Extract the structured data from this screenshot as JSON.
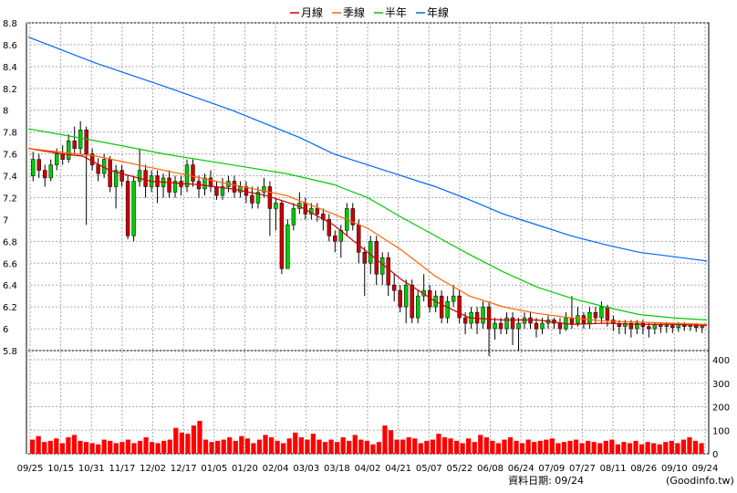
{
  "chart_data": {
    "type": "candlestick",
    "legend": {
      "placement": "top-center",
      "items": [
        {
          "name": "月線",
          "color": "#cc0000"
        },
        {
          "name": "季線",
          "color": "#ff6600"
        },
        {
          "name": "半年",
          "color": "#00cc00"
        },
        {
          "name": "年線",
          "color": "#0066ff"
        }
      ]
    },
    "price_axis": {
      "min": 5.8,
      "max": 8.8,
      "ticks": [
        "8.8",
        "8.6",
        "8.4",
        "8.2",
        "8",
        "7.8",
        "7.6",
        "7.4",
        "7.2",
        "7",
        "6.8",
        "6.6",
        "6.4",
        "6.2",
        "6",
        "5.8"
      ],
      "position": "left"
    },
    "volume_axis": {
      "min": 0,
      "max": 400,
      "ticks": [
        "400",
        "300",
        "200",
        "100",
        "0"
      ],
      "position": "right"
    },
    "x_ticks": [
      "09/25",
      "10/15",
      "10/31",
      "11/17",
      "12/02",
      "12/17",
      "01/05",
      "01/20",
      "02/04",
      "03/03",
      "03/18",
      "04/02",
      "04/21",
      "05/07",
      "05/22",
      "06/08",
      "06/24",
      "07/09",
      "07/27",
      "08/11",
      "08/26",
      "09/10",
      "09/24"
    ],
    "colors": {
      "up": "#00cc00",
      "down": "#cc0000",
      "volume": "#ff0000",
      "grid": "#aaaaaa"
    },
    "grid": true,
    "moving_averages": {
      "month": [
        [
          0,
          7.65
        ],
        [
          0.05,
          7.6
        ],
        [
          0.08,
          7.58
        ],
        [
          0.12,
          7.45
        ],
        [
          0.18,
          7.35
        ],
        [
          0.25,
          7.32
        ],
        [
          0.3,
          7.28
        ],
        [
          0.35,
          7.22
        ],
        [
          0.4,
          7.12
        ],
        [
          0.45,
          6.95
        ],
        [
          0.5,
          6.7
        ],
        [
          0.55,
          6.45
        ],
        [
          0.6,
          6.25
        ],
        [
          0.65,
          6.1
        ],
        [
          0.7,
          6.08
        ],
        [
          0.75,
          6.08
        ],
        [
          0.8,
          6.04
        ],
        [
          0.85,
          6.05
        ],
        [
          0.9,
          6.04
        ],
        [
          0.95,
          6.04
        ],
        [
          1,
          6.03
        ]
      ],
      "quarter": [
        [
          0,
          7.65
        ],
        [
          0.1,
          7.58
        ],
        [
          0.2,
          7.45
        ],
        [
          0.3,
          7.32
        ],
        [
          0.38,
          7.22
        ],
        [
          0.45,
          7.05
        ],
        [
          0.5,
          6.92
        ],
        [
          0.55,
          6.72
        ],
        [
          0.6,
          6.48
        ],
        [
          0.65,
          6.3
        ],
        [
          0.7,
          6.2
        ],
        [
          0.75,
          6.14
        ],
        [
          0.8,
          6.1
        ],
        [
          0.85,
          6.07
        ],
        [
          0.9,
          6.06
        ],
        [
          0.95,
          6.05
        ],
        [
          1,
          6.04
        ]
      ],
      "half": [
        [
          0,
          7.83
        ],
        [
          0.1,
          7.72
        ],
        [
          0.2,
          7.6
        ],
        [
          0.3,
          7.5
        ],
        [
          0.38,
          7.42
        ],
        [
          0.45,
          7.32
        ],
        [
          0.5,
          7.2
        ],
        [
          0.55,
          7.02
        ],
        [
          0.6,
          6.85
        ],
        [
          0.65,
          6.68
        ],
        [
          0.7,
          6.52
        ],
        [
          0.75,
          6.38
        ],
        [
          0.8,
          6.28
        ],
        [
          0.85,
          6.2
        ],
        [
          0.9,
          6.13
        ],
        [
          0.95,
          6.1
        ],
        [
          1,
          6.08
        ]
      ],
      "year": [
        [
          0,
          8.67
        ],
        [
          0.1,
          8.43
        ],
        [
          0.2,
          8.22
        ],
        [
          0.3,
          8.0
        ],
        [
          0.4,
          7.75
        ],
        [
          0.45,
          7.6
        ],
        [
          0.5,
          7.5
        ],
        [
          0.55,
          7.4
        ],
        [
          0.6,
          7.3
        ],
        [
          0.65,
          7.18
        ],
        [
          0.7,
          7.05
        ],
        [
          0.75,
          6.95
        ],
        [
          0.8,
          6.85
        ],
        [
          0.85,
          6.77
        ],
        [
          0.9,
          6.7
        ],
        [
          0.95,
          6.66
        ],
        [
          1,
          6.62
        ]
      ]
    },
    "candles": [
      [
        7.4,
        7.55,
        7.62,
        7.35
      ],
      [
        7.55,
        7.45,
        7.6,
        7.38
      ],
      [
        7.45,
        7.38,
        7.5,
        7.3
      ],
      [
        7.38,
        7.5,
        7.55,
        7.35
      ],
      [
        7.5,
        7.6,
        7.65,
        7.45
      ],
      [
        7.6,
        7.55,
        7.68,
        7.5
      ],
      [
        7.55,
        7.72,
        7.78,
        7.52
      ],
      [
        7.72,
        7.65,
        7.85,
        7.6
      ],
      [
        7.65,
        7.82,
        7.9,
        7.6
      ],
      [
        7.82,
        7.6,
        7.85,
        6.95
      ],
      [
        7.6,
        7.5,
        7.65,
        7.45
      ],
      [
        7.5,
        7.42,
        7.56,
        7.35
      ],
      [
        7.42,
        7.55,
        7.6,
        7.38
      ],
      [
        7.55,
        7.3,
        7.58,
        7.25
      ],
      [
        7.3,
        7.45,
        7.5,
        7.1
      ],
      [
        7.45,
        7.35,
        7.5,
        7.3
      ],
      [
        7.35,
        6.85,
        7.4,
        6.82
      ],
      [
        6.85,
        7.35,
        7.4,
        6.8
      ],
      [
        7.35,
        7.45,
        7.65,
        7.3
      ],
      [
        7.45,
        7.3,
        7.5,
        7.2
      ],
      [
        7.3,
        7.4,
        7.45,
        7.25
      ],
      [
        7.4,
        7.3,
        7.45,
        7.15
      ],
      [
        7.3,
        7.38,
        7.42,
        7.2
      ],
      [
        7.38,
        7.25,
        7.45,
        7.2
      ],
      [
        7.25,
        7.35,
        7.4,
        7.2
      ],
      [
        7.35,
        7.3,
        7.4,
        7.22
      ],
      [
        7.3,
        7.5,
        7.55,
        7.25
      ],
      [
        7.5,
        7.35,
        7.55,
        7.3
      ],
      [
        7.35,
        7.28,
        7.4,
        7.2
      ],
      [
        7.28,
        7.38,
        7.42,
        7.22
      ],
      [
        7.38,
        7.3,
        7.45,
        7.25
      ],
      [
        7.3,
        7.22,
        7.35,
        7.18
      ],
      [
        7.22,
        7.3,
        7.38,
        7.18
      ],
      [
        7.3,
        7.35,
        7.4,
        7.25
      ],
      [
        7.35,
        7.25,
        7.4,
        7.2
      ],
      [
        7.25,
        7.3,
        7.35,
        7.2
      ],
      [
        7.3,
        7.22,
        7.35,
        7.15
      ],
      [
        7.22,
        7.15,
        7.3,
        7.1
      ],
      [
        7.15,
        7.25,
        7.3,
        7.1
      ],
      [
        7.25,
        7.3,
        7.38,
        7.2
      ],
      [
        7.3,
        7.1,
        7.35,
        6.85
      ],
      [
        7.1,
        7.15,
        7.2,
        6.9
      ],
      [
        7.15,
        6.55,
        7.18,
        6.5
      ],
      [
        6.55,
        6.95,
        7.0,
        6.55
      ],
      [
        6.95,
        7.1,
        7.15,
        6.9
      ],
      [
        7.1,
        7.15,
        7.25,
        7.05
      ],
      [
        7.15,
        7.05,
        7.2,
        7.0
      ],
      [
        7.05,
        7.1,
        7.15,
        7.0
      ],
      [
        7.1,
        7.05,
        7.15,
        6.98
      ],
      [
        7.05,
        7.0,
        7.1,
        6.9
      ],
      [
        7.0,
        6.85,
        7.05,
        6.8
      ],
      [
        6.85,
        6.8,
        6.9,
        6.7
      ],
      [
        6.8,
        6.9,
        6.95,
        6.65
      ],
      [
        6.9,
        7.1,
        7.15,
        6.85
      ],
      [
        7.1,
        6.95,
        7.15,
        6.9
      ],
      [
        6.95,
        6.7,
        7.0,
        6.6
      ],
      [
        6.7,
        6.6,
        6.75,
        6.3
      ],
      [
        6.6,
        6.8,
        6.85,
        6.5
      ],
      [
        6.8,
        6.5,
        6.85,
        6.4
      ],
      [
        6.5,
        6.65,
        6.7,
        6.4
      ],
      [
        6.65,
        6.4,
        6.7,
        6.3
      ],
      [
        6.4,
        6.35,
        6.5,
        6.25
      ],
      [
        6.35,
        6.2,
        6.4,
        6.15
      ],
      [
        6.2,
        6.4,
        6.45,
        6.05
      ],
      [
        6.4,
        6.1,
        6.45,
        6.05
      ],
      [
        6.1,
        6.3,
        6.35,
        6.05
      ],
      [
        6.3,
        6.35,
        6.5,
        6.25
      ],
      [
        6.35,
        6.2,
        6.4,
        6.15
      ],
      [
        6.2,
        6.3,
        6.35,
        6.15
      ],
      [
        6.3,
        6.1,
        6.35,
        6.05
      ],
      [
        6.1,
        6.25,
        6.3,
        6.05
      ],
      [
        6.25,
        6.3,
        6.4,
        6.2
      ],
      [
        6.3,
        6.1,
        6.35,
        6.05
      ],
      [
        6.1,
        6.05,
        6.15,
        5.95
      ],
      [
        6.05,
        6.15,
        6.2,
        6.0
      ],
      [
        6.15,
        6.05,
        6.2,
        5.95
      ],
      [
        6.05,
        6.2,
        6.25,
        6.0
      ],
      [
        6.2,
        6.0,
        6.25,
        5.75
      ],
      [
        6.0,
        6.05,
        6.1,
        5.9
      ],
      [
        6.05,
        6.0,
        6.1,
        5.95
      ],
      [
        6.0,
        6.1,
        6.15,
        5.95
      ],
      [
        6.1,
        6.0,
        6.15,
        5.85
      ],
      [
        6.0,
        6.05,
        6.1,
        5.8
      ],
      [
        6.05,
        6.1,
        6.15,
        6.0
      ],
      [
        6.1,
        6.05,
        6.15,
        6.0
      ],
      [
        6.05,
        6.0,
        6.1,
        5.92
      ],
      [
        6.0,
        6.05,
        6.1,
        5.95
      ],
      [
        6.05,
        6.08,
        6.12,
        6.0
      ],
      [
        6.08,
        6.05,
        6.1,
        6.0
      ],
      [
        6.05,
        6.0,
        6.1,
        5.95
      ],
      [
        6.0,
        6.1,
        6.15,
        5.98
      ],
      [
        6.1,
        6.05,
        6.3,
        6.0
      ],
      [
        6.05,
        6.12,
        6.2,
        6.02
      ],
      [
        6.12,
        6.05,
        6.15,
        6.0
      ],
      [
        6.05,
        6.15,
        6.2,
        6.0
      ],
      [
        6.15,
        6.1,
        6.2,
        6.05
      ],
      [
        6.1,
        6.2,
        6.25,
        6.05
      ],
      [
        6.2,
        6.08,
        6.22,
        6.02
      ],
      [
        6.08,
        6.05,
        6.12,
        5.98
      ],
      [
        6.05,
        6.02,
        6.08,
        5.95
      ],
      [
        6.02,
        6.05,
        6.08,
        5.95
      ],
      [
        6.05,
        6.0,
        6.08,
        5.92
      ],
      [
        6.0,
        6.05,
        6.08,
        5.95
      ],
      [
        6.05,
        6.02,
        6.08,
        5.95
      ],
      [
        6.02,
        6.0,
        6.05,
        5.92
      ],
      [
        6.0,
        6.04,
        6.06,
        5.95
      ],
      [
        6.04,
        6.02,
        6.06,
        5.96
      ],
      [
        6.02,
        6.03,
        6.06,
        5.96
      ],
      [
        6.03,
        6.01,
        6.05,
        5.96
      ],
      [
        6.01,
        6.04,
        6.06,
        5.97
      ],
      [
        6.04,
        6.02,
        6.06,
        5.98
      ],
      [
        6.02,
        6.03,
        6.05,
        5.98
      ],
      [
        6.03,
        6.01,
        6.05,
        5.97
      ],
      [
        6.01,
        6.02,
        6.04,
        5.96
      ]
    ],
    "volume": [
      60,
      75,
      50,
      55,
      65,
      45,
      70,
      80,
      55,
      50,
      45,
      40,
      60,
      55,
      45,
      50,
      60,
      45,
      55,
      70,
      50,
      45,
      55,
      60,
      110,
      90,
      85,
      120,
      140,
      60,
      50,
      55,
      60,
      70,
      55,
      75,
      65,
      45,
      60,
      80,
      70,
      55,
      45,
      65,
      90,
      70,
      60,
      85,
      60,
      50,
      60,
      50,
      70,
      55,
      80,
      60,
      55,
      40,
      50,
      120,
      100,
      60,
      60,
      70,
      65,
      45,
      55,
      60,
      85,
      70,
      65,
      55,
      45,
      65,
      50,
      80,
      70,
      55,
      45,
      60,
      70,
      55,
      45,
      60,
      50,
      55,
      60,
      65,
      45,
      50,
      55,
      60,
      45,
      55,
      50,
      45,
      55,
      60,
      40,
      50,
      45,
      55,
      40,
      50,
      45,
      40,
      50,
      55,
      45,
      60,
      70,
      55,
      45
    ]
  },
  "footer": {
    "date_label": "資料日期: 09/24",
    "source": "(Goodinfo.tw)"
  }
}
